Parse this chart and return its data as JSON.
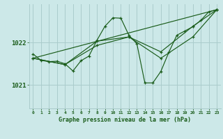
{
  "bg_color": "#cce8e8",
  "grid_color": "#aacccc",
  "line_color": "#1a5c1a",
  "marker_color": "#1a5c1a",
  "title": "Graphe pression niveau de la mer (hPa)",
  "yticks": [
    1021,
    1022
  ],
  "ylim": [
    1020.45,
    1022.9
  ],
  "xlim": [
    -0.5,
    23.5
  ],
  "lines": [
    {
      "x": [
        0,
        1,
        2,
        3,
        4,
        5,
        6,
        7,
        8,
        9,
        10,
        11,
        12,
        13,
        14,
        15,
        16,
        17,
        18,
        19,
        20,
        21,
        22,
        23
      ],
      "y": [
        1021.73,
        1021.58,
        1021.55,
        1021.56,
        1021.5,
        1021.33,
        1021.57,
        1021.68,
        1022.05,
        1022.38,
        1022.58,
        1022.57,
        1022.17,
        1021.97,
        1021.05,
        1021.05,
        1021.32,
        1021.77,
        1022.17,
        1022.27,
        1022.37,
        1022.52,
        1022.72,
        1022.77
      ],
      "marker": "+"
    },
    {
      "x": [
        0,
        4,
        8,
        12,
        16,
        20,
        23
      ],
      "y": [
        1021.63,
        1021.48,
        1021.93,
        1022.13,
        1021.78,
        1022.38,
        1022.77
      ],
      "marker": "+"
    },
    {
      "x": [
        0,
        4,
        8,
        12,
        16,
        20,
        23
      ],
      "y": [
        1021.63,
        1021.48,
        1022.03,
        1022.13,
        1021.63,
        1022.13,
        1022.77
      ],
      "marker": "+"
    },
    {
      "x": [
        0,
        23
      ],
      "y": [
        1021.63,
        1022.77
      ],
      "marker": null
    }
  ]
}
